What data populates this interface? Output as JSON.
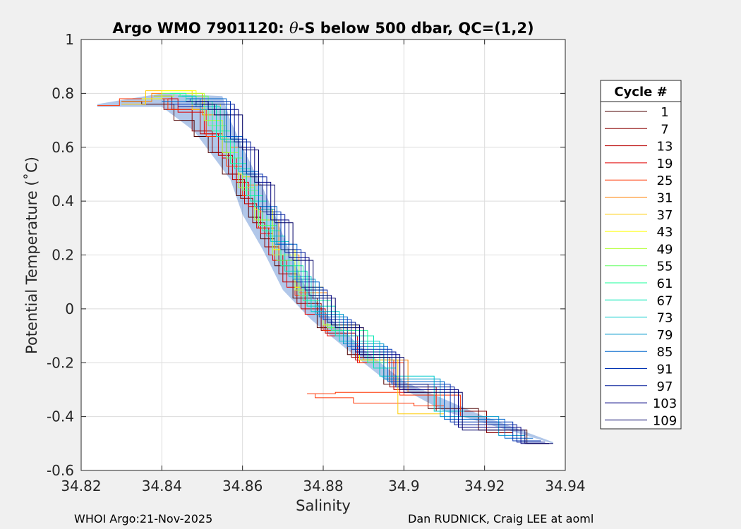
{
  "chart_data": {
    "type": "line",
    "title": "Argo WMO 7901120: θ-S below 500 dbar,  QC=(1,2)",
    "title_parts": {
      "prefix": "Argo WMO 7901120: ",
      "theta": "θ",
      "suffix": "-S below 500 dbar,  QC=(1,2)"
    },
    "xlabel": "Salinity",
    "ylabel": "Potential Temperature (˚C)",
    "xlim": [
      34.82,
      34.94
    ],
    "ylim": [
      -0.6,
      1
    ],
    "xticks": [
      "34.82",
      "34.84",
      "34.86",
      "34.88",
      "34.9",
      "34.92",
      "34.94"
    ],
    "yticks": [
      "1",
      "0.8",
      "0.6",
      "0.4",
      "0.2",
      "0",
      "-0.2",
      "-0.4",
      "-0.6"
    ],
    "grid": true,
    "legend_position": "right",
    "legend_title": "Cycle #",
    "legend_entries": [
      {
        "label": "1",
        "color": "#4d0000"
      },
      {
        "label": "7",
        "color": "#8a0000"
      },
      {
        "label": "13",
        "color": "#b80000"
      },
      {
        "label": "19",
        "color": "#e00000"
      },
      {
        "label": "25",
        "color": "#ff3300"
      },
      {
        "label": "31",
        "color": "#ff8000"
      },
      {
        "label": "37",
        "color": "#ffcc00"
      },
      {
        "label": "43",
        "color": "#ffff00"
      },
      {
        "label": "49",
        "color": "#b3ff33"
      },
      {
        "label": "55",
        "color": "#66ff66"
      },
      {
        "label": "61",
        "color": "#1aff99"
      },
      {
        "label": "67",
        "color": "#00e6b3"
      },
      {
        "label": "73",
        "color": "#00cccc"
      },
      {
        "label": "79",
        "color": "#0099cc"
      },
      {
        "label": "85",
        "color": "#0066cc"
      },
      {
        "label": "91",
        "color": "#0033b3"
      },
      {
        "label": "97",
        "color": "#001a99"
      },
      {
        "label": "103",
        "color": "#000080"
      },
      {
        "label": "109",
        "color": "#000066"
      }
    ],
    "envelope": {
      "upper": [
        [
          34.824,
          0.76
        ],
        [
          34.84,
          0.8
        ],
        [
          34.855,
          0.79
        ],
        [
          34.857,
          0.7
        ],
        [
          34.86,
          0.6
        ],
        [
          34.865,
          0.45
        ],
        [
          34.868,
          0.35
        ],
        [
          34.872,
          0.2
        ],
        [
          34.876,
          0.07
        ],
        [
          34.882,
          -0.04
        ],
        [
          34.89,
          -0.15
        ],
        [
          34.9,
          -0.27
        ],
        [
          34.92,
          -0.4
        ],
        [
          34.937,
          -0.495
        ]
      ],
      "lower": [
        [
          34.824,
          0.75
        ],
        [
          34.84,
          0.75
        ],
        [
          34.848,
          0.66
        ],
        [
          34.852,
          0.58
        ],
        [
          34.857,
          0.48
        ],
        [
          34.86,
          0.35
        ],
        [
          34.865,
          0.22
        ],
        [
          34.87,
          0.07
        ],
        [
          34.877,
          -0.04
        ],
        [
          34.885,
          -0.14
        ],
        [
          34.895,
          -0.26
        ],
        [
          34.91,
          -0.38
        ],
        [
          34.937,
          -0.5
        ]
      ]
    },
    "series": [
      {
        "cycle": "1",
        "color": "#4d0000",
        "x": [
          34.83,
          34.84,
          34.846,
          34.85,
          34.853,
          34.857,
          34.86,
          34.863,
          34.866,
          34.87,
          34.875,
          34.882,
          34.89,
          34.9,
          34.912,
          34.925,
          34.936
        ],
        "y": [
          0.77,
          0.76,
          0.7,
          0.64,
          0.58,
          0.5,
          0.42,
          0.34,
          0.26,
          0.16,
          0.04,
          -0.07,
          -0.17,
          -0.28,
          -0.37,
          -0.45,
          -0.5
        ]
      },
      {
        "cycle": "7",
        "color": "#8a0000",
        "x": [
          34.836,
          34.845,
          34.85,
          34.855,
          34.858,
          34.861,
          34.864,
          34.867,
          34.871,
          34.876,
          34.883,
          34.891,
          34.902,
          34.914,
          34.927
        ],
        "y": [
          0.78,
          0.74,
          0.66,
          0.58,
          0.5,
          0.41,
          0.32,
          0.23,
          0.13,
          0.02,
          -0.08,
          -0.18,
          -0.29,
          -0.38,
          -0.46
        ]
      },
      {
        "cycle": "13",
        "color": "#b80000",
        "x": [
          34.838,
          34.847,
          34.852,
          34.856,
          34.859,
          34.862,
          34.865,
          34.868,
          34.872,
          34.877,
          34.884,
          34.892,
          34.903
        ],
        "y": [
          0.79,
          0.74,
          0.65,
          0.57,
          0.48,
          0.39,
          0.3,
          0.2,
          0.1,
          0.0,
          -0.09,
          -0.19,
          -0.3
        ]
      },
      {
        "cycle": "19",
        "color": "#e00000",
        "x": [
          34.84,
          34.848,
          34.853,
          34.857,
          34.86,
          34.863,
          34.866,
          34.869,
          34.873,
          34.878,
          34.884,
          34.893,
          34.905
        ],
        "y": [
          0.78,
          0.73,
          0.65,
          0.56,
          0.47,
          0.38,
          0.28,
          0.18,
          0.08,
          -0.02,
          -0.1,
          -0.2,
          -0.31
        ]
      },
      {
        "cycle": "25",
        "color": "#ff3300",
        "x": [
          34.824,
          34.835,
          34.848,
          34.854,
          34.858,
          34.862,
          34.866,
          34.87,
          34.876,
          34.884,
          34.894,
          34.906,
          34.91,
          34.895,
          34.88,
          34.876,
          34.89,
          34.908,
          34.92
        ],
        "y": [
          0.755,
          0.78,
          0.74,
          0.64,
          0.53,
          0.42,
          0.3,
          0.18,
          0.05,
          -0.08,
          -0.2,
          -0.32,
          -0.36,
          -0.35,
          -0.33,
          -0.315,
          -0.31,
          -0.32,
          -0.4
        ]
      },
      {
        "cycle": "31",
        "color": "#ff8000",
        "x": [
          34.83,
          34.845,
          34.855,
          34.859,
          34.863,
          34.867,
          34.871,
          34.877,
          34.885,
          34.895,
          34.907
        ],
        "y": [
          0.77,
          0.8,
          0.72,
          0.6,
          0.46,
          0.33,
          0.2,
          0.06,
          -0.07,
          -0.19,
          -0.31
        ]
      },
      {
        "cycle": "37",
        "color": "#ffcc00",
        "x": [
          34.83,
          34.842,
          34.853,
          34.858,
          34.862,
          34.866,
          34.87,
          34.876,
          34.884,
          34.894,
          34.903,
          34.91
        ],
        "y": [
          0.76,
          0.81,
          0.74,
          0.62,
          0.49,
          0.36,
          0.22,
          0.08,
          -0.06,
          -0.19,
          -0.39,
          -0.39
        ]
      },
      {
        "cycle": "43",
        "color": "#ffff00",
        "x": [
          34.835,
          34.845,
          34.852,
          34.857,
          34.861,
          34.865,
          34.87,
          34.876,
          34.884,
          34.894
        ],
        "y": [
          0.78,
          0.81,
          0.76,
          0.63,
          0.5,
          0.37,
          0.22,
          0.08,
          -0.06,
          -0.19
        ]
      },
      {
        "cycle": "49",
        "color": "#b3ff33",
        "x": [
          34.838,
          34.848,
          34.853,
          34.857,
          34.861,
          34.865,
          34.87,
          34.876,
          34.884
        ],
        "y": [
          0.79,
          0.8,
          0.7,
          0.58,
          0.45,
          0.33,
          0.2,
          0.07,
          -0.06
        ]
      },
      {
        "cycle": "55",
        "color": "#66ff66",
        "x": [
          34.84,
          34.849,
          34.854,
          34.858,
          34.862,
          34.866,
          34.871,
          34.877,
          34.885
        ],
        "y": [
          0.8,
          0.79,
          0.68,
          0.56,
          0.44,
          0.31,
          0.18,
          0.05,
          -0.07
        ]
      },
      {
        "cycle": "61",
        "color": "#1aff99",
        "x": [
          34.842,
          34.85,
          34.855,
          34.859,
          34.863,
          34.867,
          34.872,
          34.878,
          34.886,
          34.896
        ],
        "y": [
          0.8,
          0.77,
          0.66,
          0.54,
          0.42,
          0.29,
          0.16,
          0.03,
          -0.08,
          -0.2
        ]
      },
      {
        "cycle": "67",
        "color": "#00e6b3",
        "x": [
          34.844,
          34.851,
          34.856,
          34.86,
          34.864,
          34.868,
          34.873,
          34.879,
          34.887,
          34.898
        ],
        "y": [
          0.79,
          0.76,
          0.64,
          0.52,
          0.4,
          0.27,
          0.14,
          0.01,
          -0.1,
          -0.22
        ]
      },
      {
        "cycle": "73",
        "color": "#00cccc",
        "x": [
          34.845,
          34.852,
          34.857,
          34.861,
          34.865,
          34.869,
          34.874,
          34.88,
          34.888,
          34.9,
          34.915
        ],
        "y": [
          0.79,
          0.75,
          0.63,
          0.51,
          0.38,
          0.25,
          0.12,
          -0.01,
          -0.12,
          -0.25,
          -0.38
        ]
      },
      {
        "cycle": "79",
        "color": "#0099cc",
        "x": [
          34.846,
          34.853,
          34.858,
          34.862,
          34.866,
          34.87,
          34.875,
          34.881,
          34.889,
          34.901,
          34.917,
          34.93
        ],
        "y": [
          0.78,
          0.74,
          0.62,
          0.5,
          0.37,
          0.24,
          0.11,
          -0.02,
          -0.13,
          -0.26,
          -0.4,
          -0.47
        ]
      },
      {
        "cycle": "85",
        "color": "#0066cc",
        "x": [
          34.84,
          34.854,
          34.858,
          34.862,
          34.866,
          34.871,
          34.876,
          34.882,
          34.89,
          34.902,
          34.918,
          34.932
        ],
        "y": [
          0.77,
          0.78,
          0.64,
          0.51,
          0.38,
          0.24,
          0.1,
          -0.03,
          -0.14,
          -0.27,
          -0.41,
          -0.48
        ]
      },
      {
        "cycle": "91",
        "color": "#0033b3",
        "x": [
          34.842,
          34.855,
          34.859,
          34.863,
          34.867,
          34.872,
          34.877,
          34.883,
          34.891,
          34.903,
          34.92,
          34.934
        ],
        "y": [
          0.76,
          0.77,
          0.63,
          0.5,
          0.36,
          0.22,
          0.08,
          -0.04,
          -0.15,
          -0.28,
          -0.42,
          -0.49
        ]
      },
      {
        "cycle": "97",
        "color": "#001a99",
        "x": [
          34.844,
          34.856,
          34.86,
          34.864,
          34.868,
          34.873,
          34.878,
          34.884,
          34.892,
          34.904,
          34.921,
          34.935
        ],
        "y": [
          0.75,
          0.76,
          0.62,
          0.49,
          0.35,
          0.21,
          0.07,
          -0.05,
          -0.16,
          -0.29,
          -0.43,
          -0.495
        ]
      },
      {
        "cycle": "103",
        "color": "#000080",
        "x": [
          34.846,
          34.857,
          34.861,
          34.865,
          34.869,
          34.874,
          34.879,
          34.885,
          34.893,
          34.905,
          34.922,
          34.936
        ],
        "y": [
          0.77,
          0.74,
          0.6,
          0.47,
          0.33,
          0.19,
          0.05,
          -0.06,
          -0.17,
          -0.3,
          -0.44,
          -0.5
        ]
      },
      {
        "cycle": "109",
        "color": "#000066",
        "x": [
          34.848,
          34.858,
          34.862,
          34.866,
          34.87,
          34.875,
          34.88,
          34.886,
          34.894,
          34.906,
          34.923,
          34.937
        ],
        "y": [
          0.76,
          0.72,
          0.59,
          0.46,
          0.32,
          0.18,
          0.04,
          -0.07,
          -0.18,
          -0.31,
          -0.45,
          -0.5
        ]
      }
    ]
  },
  "footer": {
    "left": "WHOI Argo:21-Nov-2025",
    "right": "Dan RUDNICK, Craig LEE at aoml"
  }
}
